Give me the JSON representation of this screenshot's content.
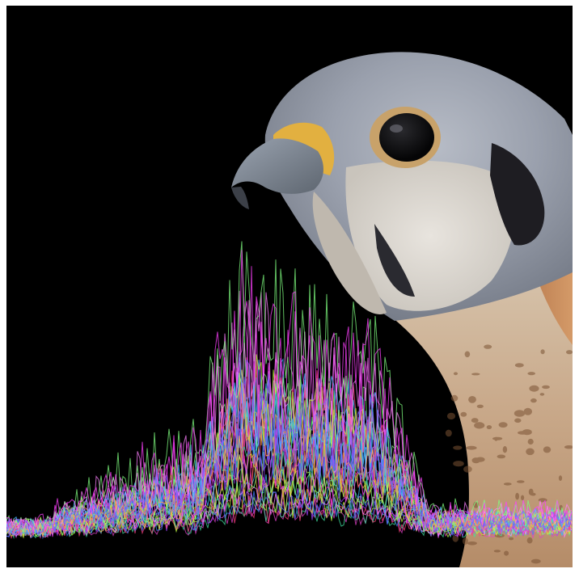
{
  "image": {
    "subject": "kestrel",
    "background_color": "#000000",
    "border_color": "#ffffff"
  },
  "overlay": {
    "trace_count": 36,
    "palette": [
      "#e040c8",
      "#40e0a0",
      "#a040ff",
      "#ff4080",
      "#c0ff40",
      "#4080ff",
      "#ff80ff",
      "#40c0ff",
      "#ffb040",
      "#80ff80",
      "#ff40ff",
      "#8060ff"
    ]
  }
}
